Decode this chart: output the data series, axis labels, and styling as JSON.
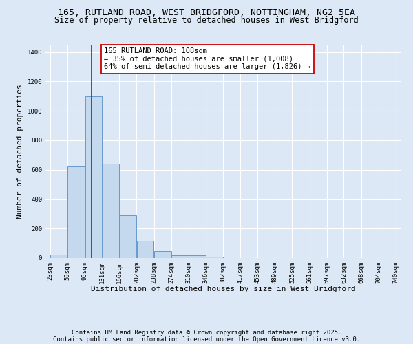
{
  "title_line1": "165, RUTLAND ROAD, WEST BRIDGFORD, NOTTINGHAM, NG2 5EA",
  "title_line2": "Size of property relative to detached houses in West Bridgford",
  "xlabel": "Distribution of detached houses by size in West Bridgford",
  "ylabel": "Number of detached properties",
  "bin_edges": [
    23,
    59,
    95,
    131,
    166,
    202,
    238,
    274,
    310,
    346,
    382,
    417,
    453,
    489,
    525,
    561,
    597,
    632,
    668,
    704,
    740
  ],
  "bar_heights": [
    25,
    620,
    1100,
    640,
    290,
    115,
    48,
    20,
    18,
    10,
    0,
    0,
    0,
    0,
    0,
    0,
    0,
    0,
    0,
    0
  ],
  "bar_color": "#c5d9ee",
  "bar_edge_color": "#6699cc",
  "background_color": "#dce8f5",
  "grid_color": "#ffffff",
  "property_size": 108,
  "red_line_color": "#cc0000",
  "annotation_text": "165 RUTLAND ROAD: 108sqm\n← 35% of detached houses are smaller (1,008)\n64% of semi-detached houses are larger (1,826) →",
  "annotation_box_color": "#ffffff",
  "annotation_border_color": "#cc0000",
  "ylim": [
    0,
    1450
  ],
  "yticks": [
    0,
    200,
    400,
    600,
    800,
    1000,
    1200,
    1400
  ],
  "footer_line1": "Contains HM Land Registry data © Crown copyright and database right 2025.",
  "footer_line2": "Contains public sector information licensed under the Open Government Licence v3.0.",
  "title_fontsize": 9.5,
  "subtitle_fontsize": 8.5,
  "axis_label_fontsize": 8,
  "tick_fontsize": 6.5,
  "annotation_fontsize": 7.5,
  "footer_fontsize": 6.5
}
